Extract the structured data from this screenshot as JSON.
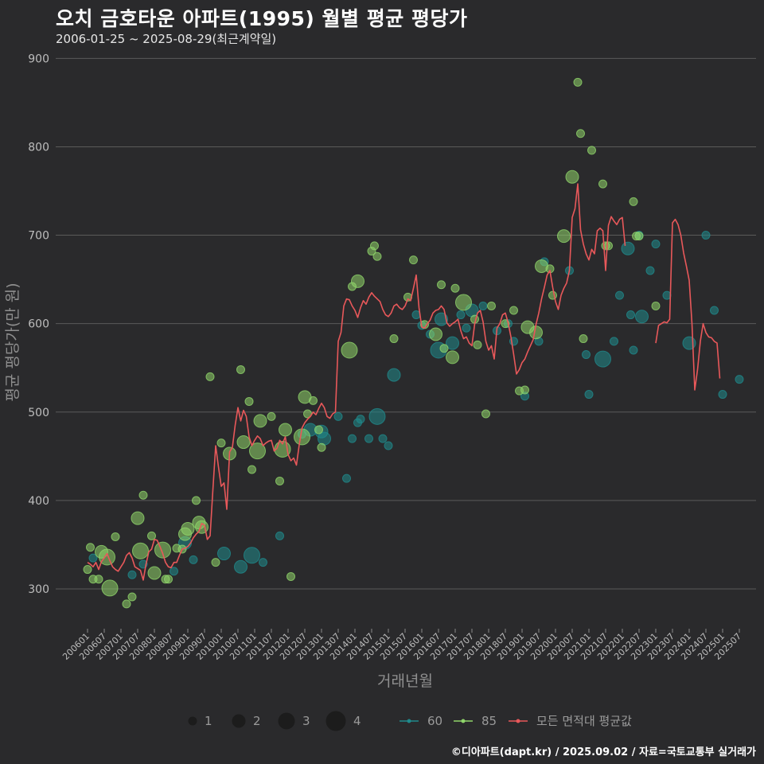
{
  "header": {
    "title": "오치 금호타운 아파트(1995) 월별 평균 평당가",
    "subtitle": "2006-01-25 ~ 2025-08-29(최근계약일)"
  },
  "footer": {
    "credit": "©디아파트(dapt.kr) / 2025.09.02 / 자료=국토교통부 실거래가"
  },
  "colors": {
    "background": "#2a2a2c",
    "grid": "#5a5a5a",
    "s60": "#1f8a8c",
    "s85": "#8fd46a",
    "avg": "#e8585a"
  },
  "chart_data": {
    "type": "scatter",
    "title": "오치 금호타운 아파트(1995) 월별 평균 평당가",
    "xlabel": "거래년월",
    "ylabel": "평균 평당가(만 원)",
    "ylim": [
      255,
      912
    ],
    "yticks": [
      300,
      400,
      500,
      600,
      700,
      800,
      900
    ],
    "xticks": [
      "200601",
      "200607",
      "200701",
      "200707",
      "200801",
      "200807",
      "200901",
      "200907",
      "201001",
      "201007",
      "201101",
      "201107",
      "201201",
      "201207",
      "201301",
      "201307",
      "201401",
      "201407",
      "201501",
      "201507",
      "201601",
      "201607",
      "201701",
      "201707",
      "201801",
      "201807",
      "201901",
      "201907",
      "202001",
      "202007",
      "202101",
      "202107",
      "202201",
      "202207",
      "202301",
      "202307",
      "202401",
      "202407",
      "202501",
      "202507"
    ],
    "grid": "horizontal",
    "legend_position": "bottom",
    "size_legend": {
      "title": "",
      "values": [
        1,
        2,
        3,
        4
      ]
    },
    "series": [
      {
        "name": "60",
        "kind": "points",
        "points": [
          [
            "200603",
            335,
            1
          ],
          [
            "200705",
            316,
            1
          ],
          [
            "200709",
            328,
            1
          ],
          [
            "200808",
            320,
            1
          ],
          [
            "200812",
            352,
            2
          ],
          [
            "200903",
            333,
            1
          ],
          [
            "201002",
            340,
            2
          ],
          [
            "201008",
            325,
            2
          ],
          [
            "201012",
            338,
            3
          ],
          [
            "201104",
            330,
            1
          ],
          [
            "201110",
            360,
            1
          ],
          [
            "201206",
            475,
            1
          ],
          [
            "201209",
            480,
            2
          ],
          [
            "201301",
            478,
            2
          ],
          [
            "201302",
            470,
            2
          ],
          [
            "201307",
            495,
            1
          ],
          [
            "201310",
            425,
            1
          ],
          [
            "201312",
            470,
            1
          ],
          [
            "201402",
            488,
            1
          ],
          [
            "201403",
            492,
            1
          ],
          [
            "201406",
            470,
            1
          ],
          [
            "201409",
            495,
            3
          ],
          [
            "201411",
            470,
            1
          ],
          [
            "201501",
            462,
            1
          ],
          [
            "201503",
            542,
            2
          ],
          [
            "201511",
            610,
            1
          ],
          [
            "201601",
            598,
            1
          ],
          [
            "201604",
            588,
            1
          ],
          [
            "201607",
            570,
            3
          ],
          [
            "201608",
            605,
            2
          ],
          [
            "201612",
            578,
            2
          ],
          [
            "201703",
            610,
            1
          ],
          [
            "201705",
            595,
            1
          ],
          [
            "201707",
            615,
            2
          ],
          [
            "201711",
            620,
            1
          ],
          [
            "201804",
            592,
            1
          ],
          [
            "201808",
            600,
            1
          ],
          [
            "201810",
            580,
            1
          ],
          [
            "201902",
            518,
            1
          ],
          [
            "201907",
            580,
            1
          ],
          [
            "201909",
            670,
            1
          ],
          [
            "202006",
            660,
            1
          ],
          [
            "202012",
            565,
            1
          ],
          [
            "202101",
            520,
            1
          ],
          [
            "202106",
            560,
            3
          ],
          [
            "202110",
            580,
            1
          ],
          [
            "202112",
            632,
            1
          ],
          [
            "202203",
            685,
            2
          ],
          [
            "202204",
            610,
            1
          ],
          [
            "202205",
            570,
            1
          ],
          [
            "202207",
            700,
            1
          ],
          [
            "202208",
            608,
            2
          ],
          [
            "202211",
            660,
            1
          ],
          [
            "202301",
            690,
            1
          ],
          [
            "202305",
            632,
            1
          ],
          [
            "202401",
            578,
            2
          ],
          [
            "202407",
            700,
            1
          ],
          [
            "202410",
            615,
            1
          ],
          [
            "202501",
            520,
            1
          ],
          [
            "202507",
            537,
            1
          ]
        ]
      },
      {
        "name": "85",
        "kind": "points",
        "points": [
          [
            "200601",
            322,
            1
          ],
          [
            "200602",
            347,
            1
          ],
          [
            "200603",
            311,
            1
          ],
          [
            "200605",
            311,
            1
          ],
          [
            "200606",
            342,
            2
          ],
          [
            "200608",
            336,
            3
          ],
          [
            "200609",
            301,
            3
          ],
          [
            "200611",
            359,
            1
          ],
          [
            "200703",
            283,
            1
          ],
          [
            "200705",
            291,
            1
          ],
          [
            "200707",
            380,
            2
          ],
          [
            "200708",
            343,
            3
          ],
          [
            "200709",
            406,
            1
          ],
          [
            "200712",
            360,
            1
          ],
          [
            "200801",
            318,
            2
          ],
          [
            "200804",
            344,
            3
          ],
          [
            "200805",
            311,
            1
          ],
          [
            "200806",
            311,
            1
          ],
          [
            "200809",
            346,
            1
          ],
          [
            "200811",
            345,
            1
          ],
          [
            "200812",
            362,
            2
          ],
          [
            "200901",
            368,
            2
          ],
          [
            "200904",
            400,
            1
          ],
          [
            "200905",
            375,
            2
          ],
          [
            "200906",
            370,
            2
          ],
          [
            "200909",
            540,
            1
          ],
          [
            "200911",
            330,
            1
          ],
          [
            "201001",
            465,
            1
          ],
          [
            "201004",
            453,
            2
          ],
          [
            "201008",
            548,
            1
          ],
          [
            "201009",
            466,
            2
          ],
          [
            "201011",
            512,
            1
          ],
          [
            "201012",
            435,
            1
          ],
          [
            "201102",
            456,
            3
          ],
          [
            "201103",
            490,
            2
          ],
          [
            "201107",
            495,
            1
          ],
          [
            "201110",
            422,
            1
          ],
          [
            "201111",
            458,
            3
          ],
          [
            "201112",
            480,
            2
          ],
          [
            "201202",
            314,
            1
          ],
          [
            "201206",
            472,
            3
          ],
          [
            "201207",
            517,
            2
          ],
          [
            "201208",
            498,
            1
          ],
          [
            "201210",
            513,
            1
          ],
          [
            "201212",
            480,
            1
          ],
          [
            "201301",
            460,
            1
          ],
          [
            "201311",
            570,
            3
          ],
          [
            "201312",
            642,
            1
          ],
          [
            "201402",
            648,
            2
          ],
          [
            "201407",
            682,
            1
          ],
          [
            "201408",
            688,
            1
          ],
          [
            "201409",
            676,
            1
          ],
          [
            "201503",
            583,
            1
          ],
          [
            "201508",
            630,
            1
          ],
          [
            "201510",
            672,
            1
          ],
          [
            "201602",
            599,
            1
          ],
          [
            "201606",
            588,
            2
          ],
          [
            "201608",
            644,
            1
          ],
          [
            "201609",
            572,
            1
          ],
          [
            "201612",
            562,
            2
          ],
          [
            "201701",
            640,
            1
          ],
          [
            "201704",
            624,
            3
          ],
          [
            "201708",
            605,
            1
          ],
          [
            "201709",
            576,
            1
          ],
          [
            "201712",
            498,
            1
          ],
          [
            "201802",
            620,
            1
          ],
          [
            "201807",
            600,
            1
          ],
          [
            "201810",
            615,
            1
          ],
          [
            "201812",
            524,
            1
          ],
          [
            "201902",
            525,
            1
          ],
          [
            "201903",
            596,
            2
          ],
          [
            "201906",
            590,
            2
          ],
          [
            "201908",
            665,
            2
          ],
          [
            "201911",
            662,
            1
          ],
          [
            "201912",
            632,
            1
          ],
          [
            "202004",
            699,
            2
          ],
          [
            "202007",
            766,
            2
          ],
          [
            "202009",
            873,
            1
          ],
          [
            "202010",
            815,
            1
          ],
          [
            "202011",
            583,
            1
          ],
          [
            "202102",
            796,
            1
          ],
          [
            "202106",
            758,
            1
          ],
          [
            "202107",
            688,
            1
          ],
          [
            "202108",
            688,
            1
          ],
          [
            "202205",
            738,
            1
          ],
          [
            "202206",
            699,
            1
          ],
          [
            "202207",
            699,
            1
          ],
          [
            "202301",
            620,
            1
          ]
        ]
      },
      {
        "name": "모든 면적대 평균값",
        "kind": "line",
        "x_range": [
          "200601",
          "202508"
        ],
        "y": [
          330,
          328,
          325,
          330,
          322,
          331,
          335,
          340,
          332,
          325,
          322,
          320,
          325,
          330,
          338,
          341,
          335,
          325,
          323,
          321,
          310,
          328,
          342,
          345,
          356,
          355,
          348,
          340,
          330,
          325,
          324,
          330,
          330,
          338,
          345,
          346,
          348,
          352,
          358,
          362,
          365,
          374,
          372,
          356,
          360,
          412,
          462,
          438,
          416,
          420,
          390,
          455,
          460,
          485,
          505,
          490,
          502,
          495,
          472,
          462,
          468,
          473,
          470,
          462,
          465,
          467,
          468,
          456,
          459,
          468,
          464,
          472,
          452,
          445,
          448,
          440,
          463,
          482,
          488,
          492,
          495,
          500,
          497,
          504,
          510,
          505,
          495,
          493,
          498,
          500,
          580,
          590,
          620,
          628,
          627,
          620,
          615,
          607,
          618,
          626,
          622,
          630,
          635,
          631,
          628,
          625,
          616,
          610,
          608,
          612,
          620,
          622,
          618,
          616,
          620,
          628,
          626,
          640,
          655,
          618,
          596,
          595,
          600,
          604,
          612,
          615,
          616,
          620,
          616,
          601,
          597,
          600,
          602,
          605,
          592,
          583,
          585,
          578,
          575,
          600,
          612,
          615,
          602,
          580,
          570,
          575,
          560,
          595,
          600,
          610,
          612,
          601,
          585,
          565,
          543,
          548,
          556,
          560,
          568,
          575,
          582,
          599,
          612,
          628,
          641,
          655,
          660,
          641,
          625,
          616,
          632,
          640,
          646,
          660,
          720,
          730,
          758,
          706,
          690,
          679,
          672,
          684,
          679,
          705,
          708,
          705,
          660,
          711,
          721,
          716,
          712,
          718,
          720,
          688,
          null,
          null,
          null,
          null,
          null,
          null,
          null,
          null,
          null,
          null,
          578,
          598,
          600,
          602,
          601,
          605,
          714,
          718,
          712,
          700,
          680,
          665,
          649,
          600,
          525,
          548,
          580,
          600,
          590,
          585,
          584,
          580,
          578,
          538
        ]
      }
    ]
  }
}
